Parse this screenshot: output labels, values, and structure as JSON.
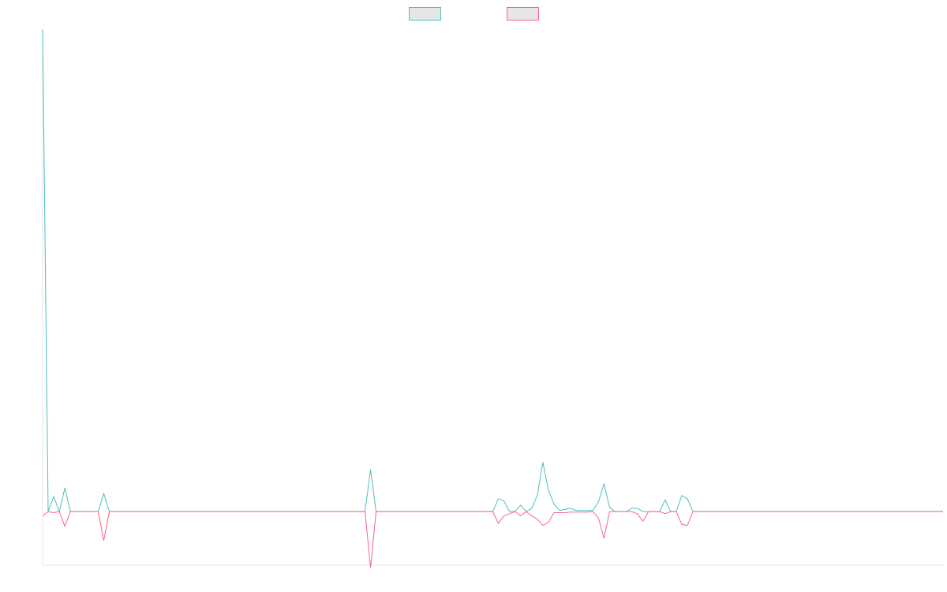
{
  "chart_data": {
    "type": "line",
    "title": "",
    "xlabel": "",
    "ylabel": "",
    "legend": {
      "placement": "top-center",
      "entries": [
        {
          "color": "#4bc0c0"
        },
        {
          "color": "#ff6384"
        }
      ]
    },
    "grid": false,
    "ylim": [
      -5000,
      45000
    ],
    "series": [
      {
        "color": "#4bc0c0",
        "values": [
          45000,
          0,
          1400,
          0,
          2200,
          0,
          0,
          0,
          0,
          0,
          0,
          1700,
          0,
          0,
          0,
          0,
          0,
          0,
          0,
          0,
          0,
          0,
          0,
          0,
          0,
          0,
          0,
          0,
          0,
          0,
          0,
          0,
          0,
          0,
          0,
          0,
          0,
          0,
          0,
          0,
          0,
          0,
          0,
          0,
          0,
          0,
          0,
          0,
          0,
          0,
          0,
          0,
          0,
          0,
          0,
          0,
          0,
          0,
          0,
          3900,
          0,
          0,
          0,
          0,
          0,
          0,
          0,
          0,
          0,
          0,
          0,
          0,
          0,
          0,
          0,
          0,
          0,
          0,
          0,
          0,
          0,
          0,
          1200,
          1000,
          0,
          0,
          600,
          0,
          300,
          1500,
          4600,
          2000,
          700,
          100,
          200,
          300,
          100,
          100,
          100,
          100,
          900,
          2600,
          400,
          0,
          0,
          0,
          300,
          300,
          0,
          0,
          0,
          0,
          1100,
          0,
          0,
          1500,
          1200,
          0,
          0,
          0,
          0,
          0,
          0,
          0,
          0,
          0,
          0,
          0,
          0,
          0,
          0,
          0,
          0,
          0,
          0,
          0,
          0,
          0,
          0,
          0,
          0,
          0,
          0,
          0,
          0,
          0,
          0,
          0,
          0,
          0,
          0,
          0,
          0,
          0,
          0,
          0,
          0,
          0,
          0,
          0,
          0,
          0,
          0
        ]
      },
      {
        "color": "#ff6384",
        "values": [
          -400,
          0,
          -100,
          0,
          -1400,
          0,
          0,
          0,
          0,
          0,
          0,
          -2700,
          0,
          0,
          0,
          0,
          0,
          0,
          0,
          0,
          0,
          0,
          0,
          0,
          0,
          0,
          0,
          0,
          0,
          0,
          0,
          0,
          0,
          0,
          0,
          0,
          0,
          0,
          0,
          0,
          0,
          0,
          0,
          0,
          0,
          0,
          0,
          0,
          0,
          0,
          0,
          0,
          0,
          0,
          0,
          0,
          0,
          0,
          0,
          -5200,
          0,
          0,
          0,
          0,
          0,
          0,
          0,
          0,
          0,
          0,
          0,
          0,
          0,
          0,
          0,
          0,
          0,
          0,
          0,
          0,
          0,
          0,
          -1100,
          -400,
          -200,
          0,
          -400,
          0,
          -400,
          -700,
          -1300,
          -1000,
          -100,
          -100,
          -100,
          -50,
          -50,
          -50,
          -50,
          0,
          -600,
          -2500,
          0,
          0,
          0,
          0,
          0,
          -200,
          -900,
          0,
          0,
          0,
          -200,
          0,
          0,
          -1200,
          -1300,
          0,
          0,
          0,
          0,
          0,
          0,
          0,
          0,
          0,
          0,
          0,
          0,
          0,
          0,
          0,
          0,
          0,
          0,
          0,
          0,
          0,
          0,
          0,
          0,
          0,
          0,
          0,
          0,
          0,
          0,
          0,
          0,
          0,
          0,
          0,
          0,
          0,
          0,
          0,
          0,
          0,
          0,
          0,
          0,
          0,
          0
        ]
      }
    ]
  }
}
